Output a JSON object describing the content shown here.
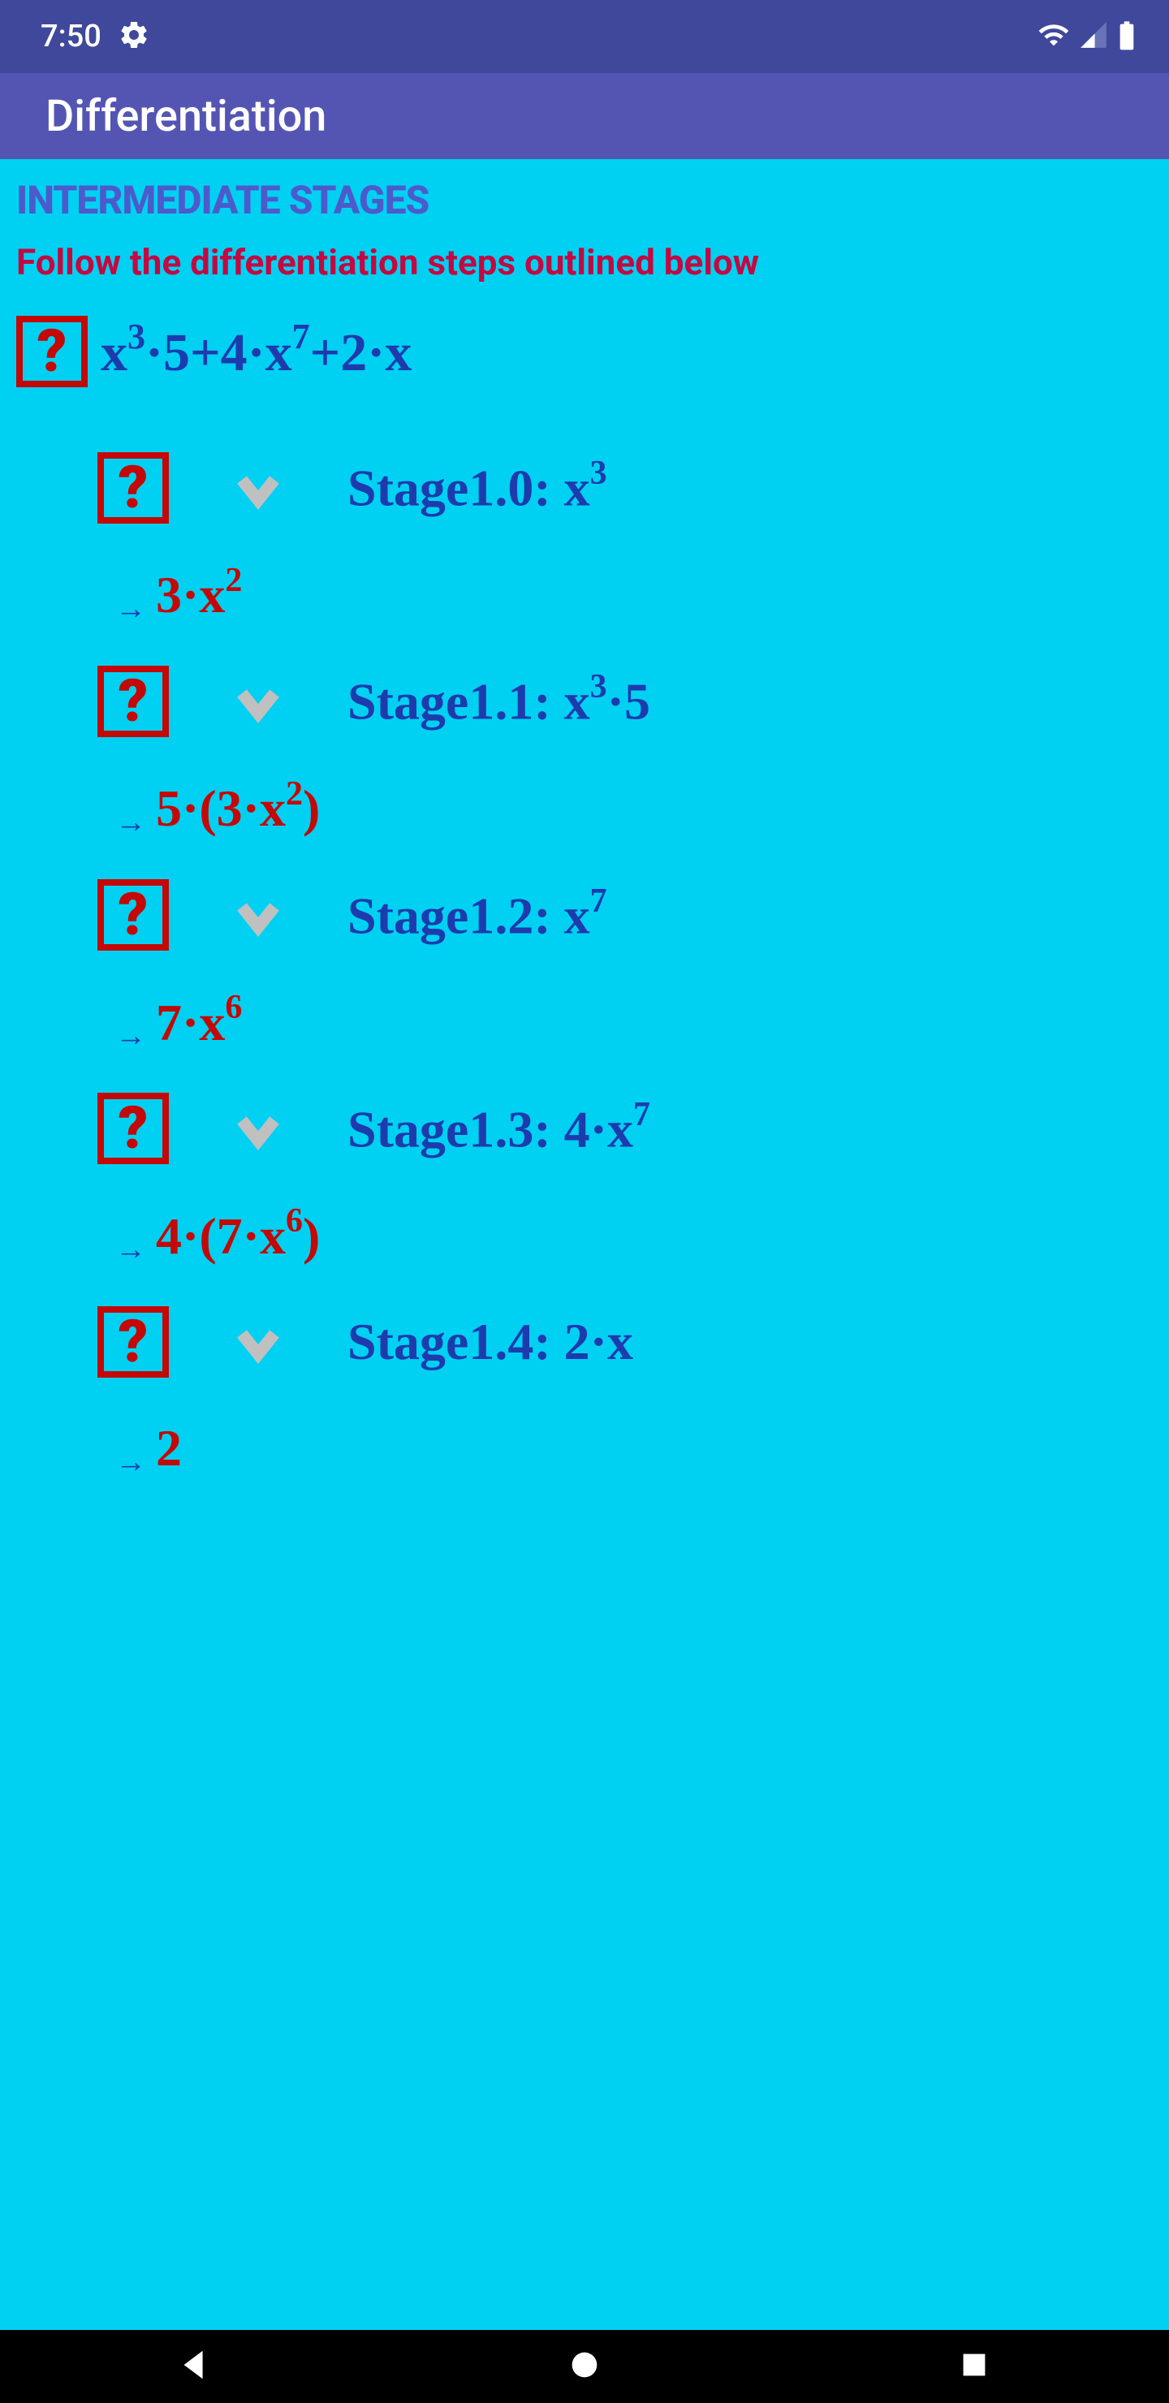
{
  "statusBar": {
    "time": "7:50",
    "backgroundColor": "#3f489b"
  },
  "appBar": {
    "title": "Differentiation",
    "backgroundColor": "#5455b3"
  },
  "section": {
    "header": "INTERMEDIATE STAGES",
    "instruction": "Follow the differentiation steps outlined below"
  },
  "problem": {
    "parts": [
      {
        "type": "text",
        "val": "x"
      },
      {
        "type": "sup",
        "val": "3"
      },
      {
        "type": "text",
        "val": "·5+4·x"
      },
      {
        "type": "sup",
        "val": "7"
      },
      {
        "type": "text",
        "val": "+2·x"
      }
    ]
  },
  "stages": [
    {
      "labelParts": [
        {
          "type": "text",
          "val": "Stage1.0: x"
        },
        {
          "type": "sup",
          "val": "3"
        }
      ],
      "resultParts": [
        {
          "type": "text",
          "val": "3·x"
        },
        {
          "type": "sup",
          "val": "2"
        }
      ]
    },
    {
      "labelParts": [
        {
          "type": "text",
          "val": "Stage1.1: x"
        },
        {
          "type": "sup",
          "val": "3"
        },
        {
          "type": "text",
          "val": "·5"
        }
      ],
      "resultParts": [
        {
          "type": "text",
          "val": "5·(3·x"
        },
        {
          "type": "sup",
          "val": "2"
        },
        {
          "type": "text",
          "val": ")"
        }
      ]
    },
    {
      "labelParts": [
        {
          "type": "text",
          "val": "Stage1.2: x"
        },
        {
          "type": "sup",
          "val": "7"
        }
      ],
      "resultParts": [
        {
          "type": "text",
          "val": "7·x"
        },
        {
          "type": "sup",
          "val": "6"
        }
      ]
    },
    {
      "labelParts": [
        {
          "type": "text",
          "val": "Stage1.3: 4·x"
        },
        {
          "type": "sup",
          "val": "7"
        }
      ],
      "resultParts": [
        {
          "type": "text",
          "val": "4·(7·x"
        },
        {
          "type": "sup",
          "val": "6"
        },
        {
          "type": "text",
          "val": ")"
        }
      ]
    },
    {
      "labelParts": [
        {
          "type": "text",
          "val": "Stage1.4: 2·x"
        }
      ],
      "resultParts": [
        {
          "type": "text",
          "val": "2"
        }
      ]
    }
  ],
  "colors": {
    "background": "#00d0f2",
    "headerBlue": "#4c5bcb",
    "instructionRed": "#c40841",
    "expressionBlue": "#1d3bad",
    "resultRed": "#c40806",
    "iconBorder": "#c40806"
  }
}
